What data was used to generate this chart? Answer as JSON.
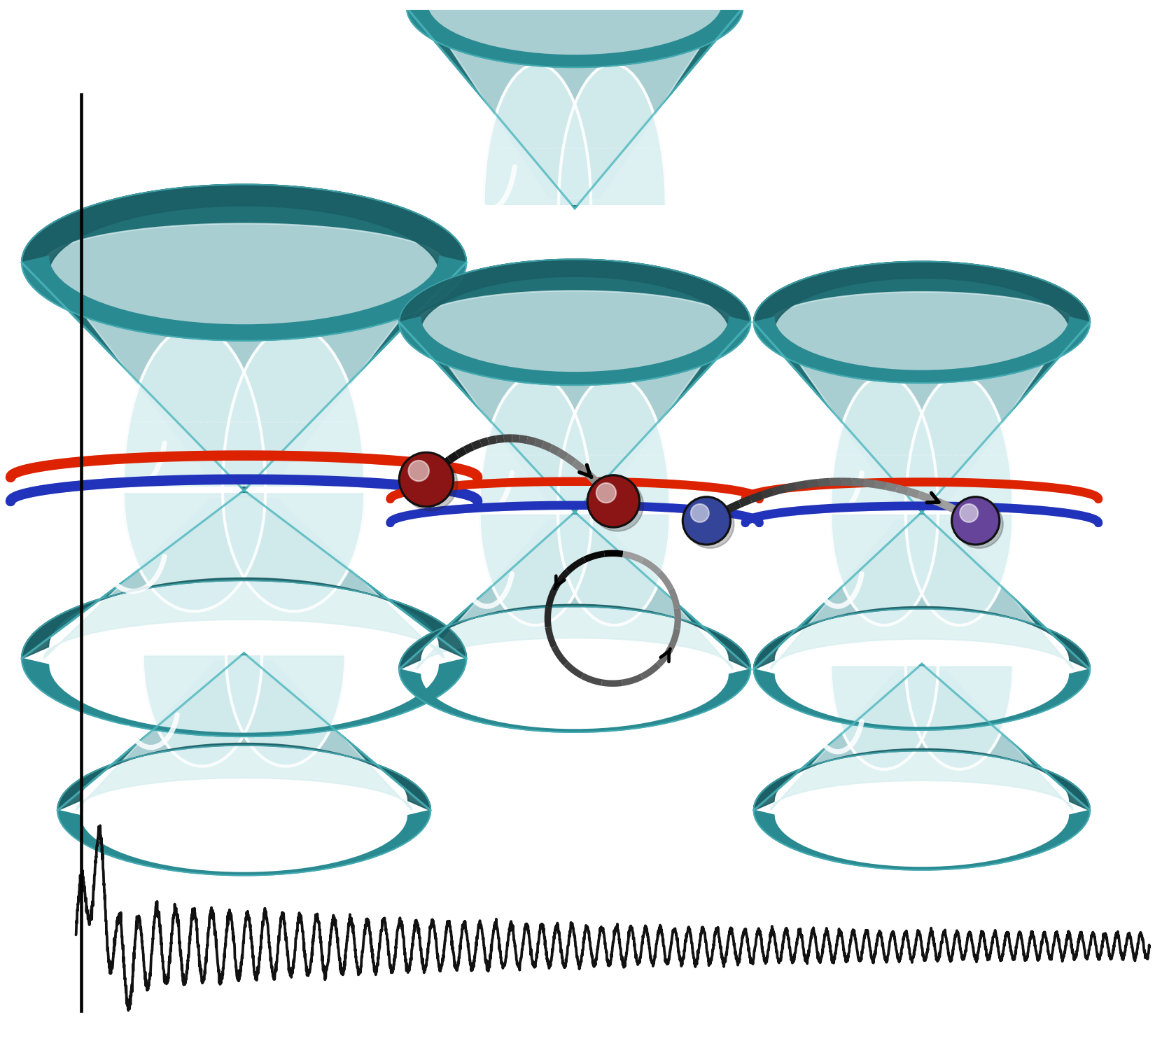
{
  "bg_color": "#ffffff",
  "teal_main": "#2a8a91",
  "teal_light": "#4db8bf",
  "teal_pale": "#9fd4d8",
  "teal_dark": "#1a5f65",
  "teal_inner_white": "#d8eef0",
  "red_band": "#dd2200",
  "blue_band": "#2233bb",
  "purple_band": "#7755bb",
  "red_particle": "#8b1515",
  "blue_particle": "#334499",
  "purple_particle": "#664499",
  "wave_color": "#111111",
  "figure_width": 11.0,
  "figure_height": 9.98,
  "dpi": 150
}
